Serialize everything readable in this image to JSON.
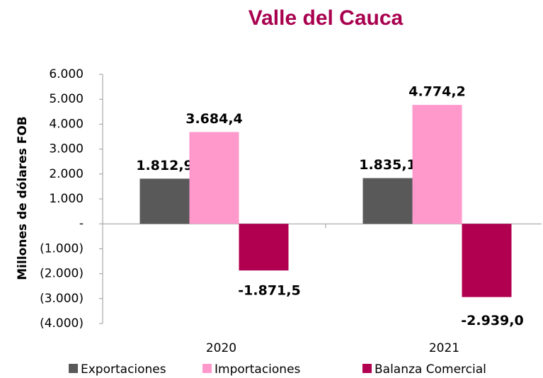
{
  "chart_data": {
    "type": "bar",
    "title": "Valle del Cauca",
    "y_label": "Millones de dólares FOB",
    "categories": [
      "2020",
      "2021"
    ],
    "series": [
      {
        "name": "Exportaciones",
        "color": "#595959",
        "values": [
          1812.9,
          1835.1
        ],
        "value_labels": [
          "1.812,9",
          "1.835,1"
        ]
      },
      {
        "name": "Importaciones",
        "color": "#ff99cc",
        "values": [
          3684.4,
          4774.2
        ],
        "value_labels": [
          "3.684,4",
          "4.774,2"
        ]
      },
      {
        "name": "Balanza Comercial",
        "color": "#b0004f",
        "values": [
          -1871.5,
          -2939.0
        ],
        "value_labels": [
          "-1.871,5",
          "-2.939,0"
        ]
      }
    ],
    "ylim": [
      -4000,
      6000
    ],
    "yticks": [
      {
        "value": -4000,
        "label": "(4.000)"
      },
      {
        "value": -3000,
        "label": "(3.000)"
      },
      {
        "value": -2000,
        "label": "(2.000)"
      },
      {
        "value": -1000,
        "label": "(1.000)"
      },
      {
        "value": 0,
        "label": "-"
      },
      {
        "value": 1000,
        "label": "1.000"
      },
      {
        "value": 2000,
        "label": "2.000"
      },
      {
        "value": 3000,
        "label": "3.000"
      },
      {
        "value": 4000,
        "label": "4.000"
      },
      {
        "value": 5000,
        "label": "5.000"
      },
      {
        "value": 6000,
        "label": "6.000"
      }
    ],
    "legend": "bottom"
  }
}
